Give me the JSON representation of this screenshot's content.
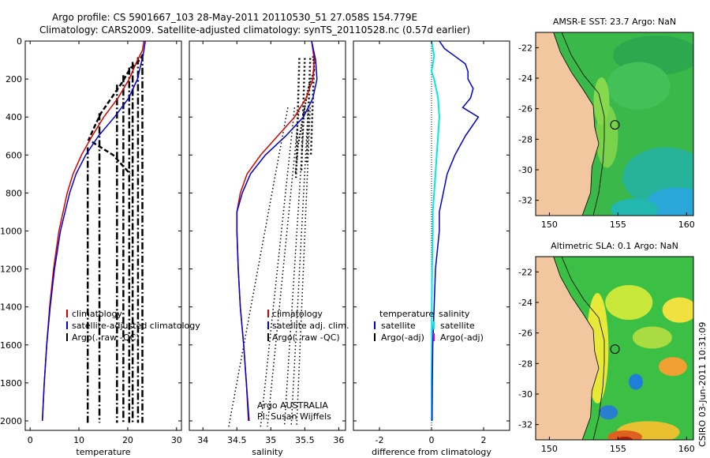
{
  "header": {
    "line1": "Argo profile: CS 5901667_103 28-May-2011 20110530_51 27.058S 154.779E",
    "line2": "Climatology: CARS2009. Satellite-adjusted climatology: synTS_20110528.nc (0.57d earlier)"
  },
  "credit": "CSIRO 03-Jun-2011 10:31:09",
  "colors": {
    "climatology": "#d40000",
    "satellite": "#0000d0",
    "argo": "#000000",
    "salinity_satellite": "#00e8e8",
    "salinity_argo": "#d000d0",
    "land": "#f2c7a0"
  },
  "chart_data": [
    {
      "type": "line",
      "name": "temperature-panel",
      "xlabel": "temperature",
      "ylabel": "",
      "xlim": [
        -1,
        31
      ],
      "ylim": [
        2050,
        0
      ],
      "xticks": [
        0,
        10,
        20,
        30
      ],
      "yticks": [
        0,
        200,
        400,
        600,
        800,
        1000,
        1200,
        1400,
        1600,
        1800,
        2000
      ],
      "legend": [
        "climatology",
        "satellite-adjusted climatology",
        "Argo(..raw -QC)"
      ],
      "series": [
        {
          "name": "climatology",
          "depth": [
            0,
            50,
            100,
            200,
            300,
            400,
            500,
            600,
            700,
            800,
            1000,
            1200,
            1400,
            1600,
            1800,
            2000
          ],
          "values": [
            23.3,
            23.0,
            22.0,
            20.3,
            18.0,
            15.1,
            12.7,
            10.5,
            8.8,
            7.6,
            5.9,
            4.8,
            4.0,
            3.4,
            2.9,
            2.5
          ]
        },
        {
          "name": "satellite-adjusted climatology",
          "depth": [
            0,
            50,
            100,
            200,
            300,
            400,
            500,
            600,
            700,
            800,
            1000,
            1200,
            1400,
            1600,
            1800,
            2000
          ],
          "values": [
            23.6,
            23.3,
            22.9,
            22.0,
            20.2,
            17.3,
            14.0,
            11.4,
            9.4,
            8.1,
            6.2,
            5.0,
            4.1,
            3.4,
            2.9,
            2.5
          ]
        },
        {
          "name": "Argo(..raw -QC)",
          "depth": [
            70,
            120,
            140,
            220,
            380,
            450,
            520,
            600,
            700
          ],
          "values": [
            23.2,
            21.8,
            20.6,
            18.8,
            14.5,
            13.2,
            12.0,
            17.0,
            20.5
          ]
        }
      ]
    },
    {
      "type": "line",
      "name": "salinity-panel",
      "xlabel": "salinity",
      "xlim": [
        33.8,
        36.1
      ],
      "ylim": [
        2050,
        0
      ],
      "xticks": [
        34,
        34.5,
        35,
        35.5,
        36
      ],
      "legend": [
        "climatology",
        "satellite adj. clim.",
        "Argo(..raw -QC)"
      ],
      "annotations": [
        "Argo AUSTRALIA",
        "PI: Susan Wijffels"
      ],
      "series": [
        {
          "name": "climatology",
          "depth": [
            0,
            100,
            200,
            300,
            400,
            500,
            600,
            700,
            800,
            900,
            1000,
            1200,
            1400,
            1600,
            1800,
            2000
          ],
          "values": [
            35.6,
            35.64,
            35.62,
            35.52,
            35.35,
            35.1,
            34.85,
            34.65,
            34.55,
            34.5,
            34.5,
            34.52,
            34.55,
            34.6,
            34.64,
            34.67
          ]
        },
        {
          "name": "satellite adj. clim.",
          "depth": [
            0,
            100,
            200,
            300,
            400,
            500,
            600,
            700,
            800,
            900,
            1000,
            1200,
            1400,
            1600,
            1800,
            2000
          ],
          "values": [
            35.6,
            35.66,
            35.68,
            35.62,
            35.48,
            35.22,
            34.92,
            34.7,
            34.58,
            34.5,
            34.5,
            34.52,
            34.55,
            34.6,
            34.64,
            34.68
          ]
        },
        {
          "name": "Argo(..raw -QC)",
          "depth": [
            80,
            150,
            250,
            350,
            450,
            550,
            650,
            700
          ],
          "values": [
            35.62,
            35.64,
            35.55,
            35.5,
            35.45,
            35.4,
            35.38,
            35.36
          ]
        }
      ]
    },
    {
      "type": "line",
      "name": "difference-panel",
      "xlabel": "difference from climatology",
      "xlim": [
        -3,
        3
      ],
      "ylim": [
        2050,
        0
      ],
      "xticks": [
        -2,
        0,
        2
      ],
      "legend": [
        "temperature",
        "satellite",
        "Argo(-adj)",
        "salinity",
        "satellite",
        "Argo(-adj)"
      ],
      "series": [
        {
          "name": "temperature satellite",
          "depth": [
            0,
            40,
            80,
            120,
            160,
            200,
            250,
            300,
            350,
            400,
            500,
            600,
            700,
            800,
            900,
            1000,
            1200,
            1400,
            1600,
            1800,
            2000
          ],
          "values": [
            0.3,
            0.5,
            0.9,
            1.3,
            1.4,
            1.4,
            1.6,
            1.5,
            1.2,
            1.8,
            1.3,
            0.9,
            0.6,
            0.45,
            0.3,
            0.3,
            0.15,
            0.1,
            0.05,
            0.03,
            0.02
          ]
        },
        {
          "name": "salinity satellite",
          "depth": [
            0,
            40,
            80,
            120,
            160,
            200,
            300,
            400,
            500,
            600,
            700,
            800,
            900,
            1000,
            1200,
            1400,
            1600,
            1800,
            2000
          ],
          "values": [
            0.0,
            0.05,
            0.1,
            0.05,
            0.0,
            0.1,
            0.25,
            0.3,
            0.25,
            0.2,
            0.15,
            0.1,
            0.05,
            0.05,
            0.02,
            0.01,
            0.01,
            0.0,
            0.0
          ]
        }
      ]
    },
    {
      "type": "heatmap",
      "name": "sst-map",
      "title": "AMSR-E SST: 23.7 Argo: NaN",
      "xlim": [
        149,
        160.5
      ],
      "ylim": [
        -33,
        -21
      ],
      "xticks": [
        150,
        155,
        160
      ],
      "yticks": [
        -22,
        -24,
        -26,
        -28,
        -30,
        -32
      ],
      "marker": {
        "lon": 154.779,
        "lat": -27.058
      }
    },
    {
      "type": "heatmap",
      "name": "sla-map",
      "title": "Altimetric SLA: 0.1 Argo: NaN",
      "xlim": [
        149,
        160.5
      ],
      "ylim": [
        -33,
        -21
      ],
      "xticks": [
        150,
        155,
        160
      ],
      "yticks": [
        -22,
        -24,
        -26,
        -28,
        -30,
        -32
      ],
      "marker": {
        "lon": 154.779,
        "lat": -27.058
      }
    }
  ]
}
